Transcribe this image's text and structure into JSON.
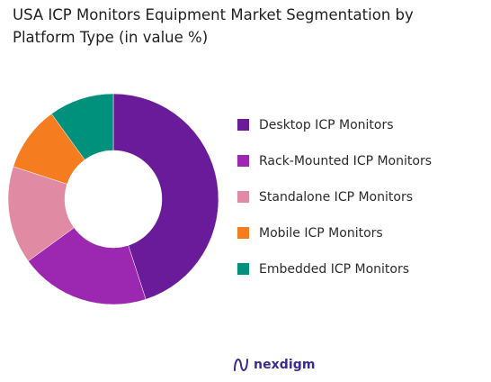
{
  "title": "USA ICP Monitors Equipment  Market Segmentation by Platform Type (in value %)",
  "brand": "nexdigm",
  "chart_data": {
    "type": "pie",
    "variant": "donut",
    "title": "USA ICP Monitors Equipment  Market Segmentation by Platform Type (in value %)",
    "legend_position": "right",
    "categories": [
      "Desktop ICP Monitors",
      "Rack-Mounted ICP Monitors",
      "Standalone ICP Monitors",
      "Mobile ICP Monitors",
      "Embedded ICP Monitors"
    ],
    "values": [
      45,
      20,
      15,
      10,
      10
    ],
    "colors": [
      "#6a1b9a",
      "#9c27b0",
      "#e08aa3",
      "#f57c1f",
      "#00917c"
    ]
  }
}
